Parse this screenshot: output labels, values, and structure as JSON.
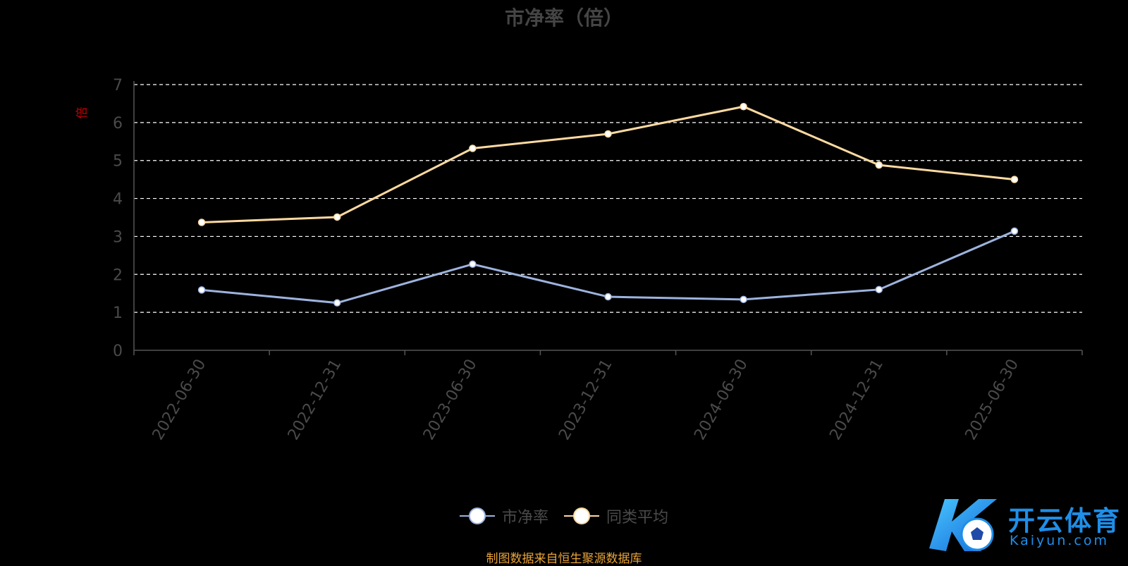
{
  "chart_data": {
    "type": "line",
    "title": "市净率（倍）",
    "ylabel": "倍",
    "ylim": [
      0,
      7
    ],
    "yticks": [
      "0",
      "1",
      "2",
      "3",
      "4",
      "5",
      "6",
      "7"
    ],
    "categories": [
      "2022-06-30",
      "2022-12-31",
      "2023-06-30",
      "2023-12-31",
      "2024-06-30",
      "2024-12-31",
      "2025-06-30"
    ],
    "series": [
      {
        "name": "市净率",
        "color": "#9db3de",
        "values": [
          1.59,
          1.25,
          2.27,
          1.41,
          1.34,
          1.6,
          3.14
        ]
      },
      {
        "name": "同类平均",
        "color": "#fcd9a0",
        "values": [
          3.37,
          3.51,
          5.32,
          5.7,
          6.42,
          4.88,
          4.5
        ]
      }
    ],
    "grid": "horizontal dashed",
    "legend_position": "bottom-center"
  },
  "source_note": "制图数据来自恒生聚源数据库",
  "watermark": {
    "brand": "开云体育",
    "domain": "Kaiyun.com"
  },
  "colors": {
    "background": "#000000",
    "axis": "#555555",
    "gridline": "#ffffff",
    "source_text": "#e8a33a",
    "ylabel": "#cc0000"
  }
}
